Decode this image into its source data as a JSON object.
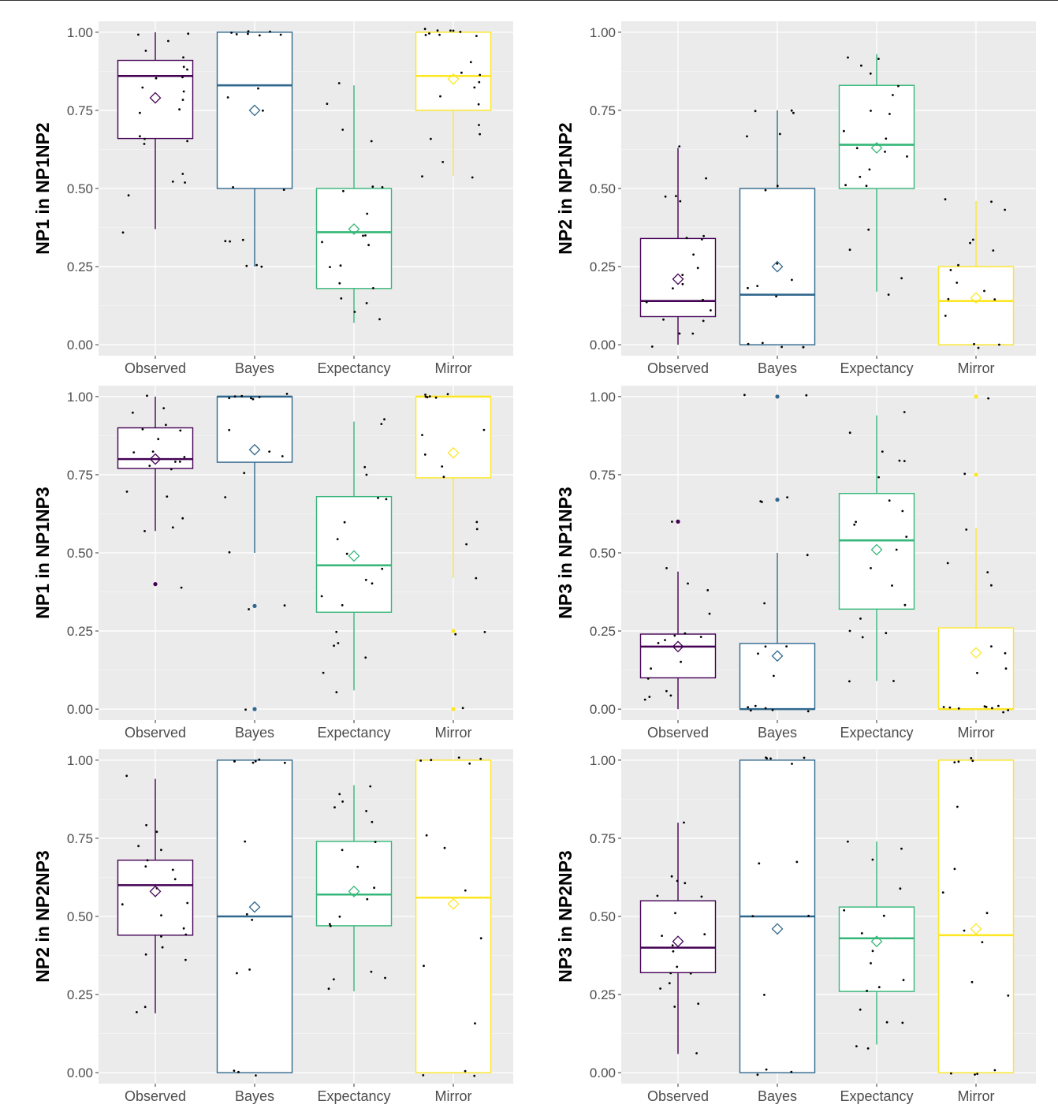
{
  "chart_data": [
    {
      "type": "box",
      "ylabel": "NP1 in NP1NP2",
      "categories": [
        "Observed",
        "Bayes",
        "Expectancy",
        "Mirror"
      ],
      "yticks": [
        "0.00",
        "0.25",
        "0.50",
        "0.75",
        "1.00"
      ],
      "ylim": [
        -0.035,
        1.035
      ],
      "boxes": [
        {
          "category": "Observed",
          "lower_whisker": 0.37,
          "q1": 0.66,
          "median": 0.86,
          "q3": 0.91,
          "upper_whisker": 1.0,
          "mean": 0.79,
          "outliers": []
        },
        {
          "category": "Bayes",
          "lower_whisker": 0.25,
          "q1": 0.5,
          "median": 0.83,
          "q3": 1.0,
          "upper_whisker": 1.0,
          "mean": 0.75,
          "outliers": []
        },
        {
          "category": "Expectancy",
          "lower_whisker": 0.07,
          "q1": 0.18,
          "median": 0.36,
          "q3": 0.5,
          "upper_whisker": 0.83,
          "mean": 0.37,
          "outliers": []
        },
        {
          "category": "Mirror",
          "lower_whisker": 0.54,
          "q1": 0.75,
          "median": 0.86,
          "q3": 1.0,
          "upper_whisker": 1.0,
          "mean": 0.85,
          "outliers": []
        }
      ],
      "jitter": [
        [
          0.47,
          0.53,
          0.37,
          0.52,
          0.54,
          0.65,
          0.66,
          0.66,
          0.67,
          0.75,
          0.76,
          0.79,
          0.8,
          0.82,
          0.86,
          0.86,
          0.87,
          0.9,
          0.91,
          0.95,
          0.97,
          1.0,
          1.0
        ],
        [
          0.25,
          0.25,
          0.25,
          0.33,
          0.33,
          0.33,
          0.5,
          0.5,
          0.75,
          0.8,
          0.83,
          1.0,
          1.0,
          1.0,
          1.0,
          1.0,
          1.0,
          1.0
        ],
        [
          0.07,
          0.1,
          0.14,
          0.15,
          0.18,
          0.2,
          0.25,
          0.25,
          0.33,
          0.33,
          0.35,
          0.36,
          0.43,
          0.5,
          0.5,
          0.5,
          0.64,
          0.69,
          0.78,
          0.83
        ],
        [
          0.54,
          0.53,
          0.58,
          0.67,
          0.67,
          0.71,
          0.77,
          0.8,
          0.82,
          0.84,
          0.86,
          0.87,
          0.9,
          1.0,
          1.0,
          1.0,
          1.0,
          1.0,
          1.0,
          1.0,
          1.0,
          1.0
        ]
      ]
    },
    {
      "type": "box",
      "ylabel": "NP2 in NP1NP2",
      "categories": [
        "Observed",
        "Bayes",
        "Expectancy",
        "Mirror"
      ],
      "yticks": [
        "0.00",
        "0.25",
        "0.50",
        "0.75",
        "1.00"
      ],
      "ylim": [
        -0.035,
        1.035
      ],
      "boxes": [
        {
          "category": "Observed",
          "lower_whisker": 0.0,
          "q1": 0.09,
          "median": 0.14,
          "q3": 0.34,
          "upper_whisker": 0.63,
          "mean": 0.21,
          "outliers": []
        },
        {
          "category": "Bayes",
          "lower_whisker": 0.0,
          "q1": 0.0,
          "median": 0.16,
          "q3": 0.5,
          "upper_whisker": 0.75,
          "mean": 0.25,
          "outliers": []
        },
        {
          "category": "Expectancy",
          "lower_whisker": 0.17,
          "q1": 0.5,
          "median": 0.64,
          "q3": 0.83,
          "upper_whisker": 0.93,
          "mean": 0.63,
          "outliers": []
        },
        {
          "category": "Mirror",
          "lower_whisker": 0.0,
          "q1": 0.0,
          "median": 0.14,
          "q3": 0.25,
          "upper_whisker": 0.46,
          "mean": 0.15,
          "outliers": []
        }
      ],
      "jitter": [
        [
          0.0,
          0.04,
          0.04,
          0.08,
          0.09,
          0.1,
          0.13,
          0.14,
          0.18,
          0.2,
          0.22,
          0.25,
          0.3,
          0.33,
          0.35,
          0.35,
          0.45,
          0.47,
          0.48,
          0.53,
          0.63
        ],
        [
          0.0,
          0.0,
          0.0,
          0.0,
          0.0,
          0.15,
          0.17,
          0.2,
          0.2,
          0.25,
          0.5,
          0.5,
          0.67,
          0.67,
          0.75,
          0.75,
          0.75
        ],
        [
          0.17,
          0.22,
          0.31,
          0.36,
          0.5,
          0.5,
          0.53,
          0.56,
          0.6,
          0.62,
          0.64,
          0.67,
          0.69,
          0.75,
          0.75,
          0.8,
          0.83,
          0.86,
          0.9,
          0.91,
          0.93
        ],
        [
          0.0,
          0.0,
          0.0,
          0.1,
          0.14,
          0.14,
          0.17,
          0.2,
          0.25,
          0.25,
          0.29,
          0.33,
          0.33,
          0.42,
          0.46,
          0.46
        ]
      ]
    },
    {
      "type": "box",
      "ylabel": "NP1 in NP1NP3",
      "categories": [
        "Observed",
        "Bayes",
        "Expectancy",
        "Mirror"
      ],
      "yticks": [
        "0.00",
        "0.25",
        "0.50",
        "0.75",
        "1.00"
      ],
      "ylim": [
        -0.035,
        1.035
      ],
      "boxes": [
        {
          "category": "Observed",
          "lower_whisker": 0.57,
          "q1": 0.77,
          "median": 0.8,
          "q3": 0.9,
          "upper_whisker": 1.0,
          "mean": 0.8,
          "outliers": [
            0.4
          ]
        },
        {
          "category": "Bayes",
          "lower_whisker": 0.5,
          "q1": 0.79,
          "median": 1.0,
          "q3": 1.0,
          "upper_whisker": 1.0,
          "mean": 0.83,
          "outliers": [
            0.33,
            0.0
          ]
        },
        {
          "category": "Expectancy",
          "lower_whisker": 0.06,
          "q1": 0.31,
          "median": 0.46,
          "q3": 0.68,
          "upper_whisker": 0.92,
          "mean": 0.49,
          "outliers": []
        },
        {
          "category": "Mirror",
          "lower_whisker": 0.42,
          "q1": 0.74,
          "median": 1.0,
          "q3": 1.0,
          "upper_whisker": 1.0,
          "mean": 0.82,
          "outliers": [
            0.25,
            0.0
          ]
        }
      ],
      "jitter": [
        [
          0.4,
          0.57,
          0.59,
          0.62,
          0.67,
          0.7,
          0.76,
          0.78,
          0.79,
          0.8,
          0.8,
          0.82,
          0.83,
          0.86,
          0.88,
          0.9,
          0.92,
          0.95,
          0.96,
          1.0
        ],
        [
          0.0,
          0.33,
          0.33,
          0.5,
          0.67,
          0.75,
          0.8,
          0.83,
          0.89,
          1.0,
          1.0,
          1.0,
          1.0,
          1.0,
          1.0,
          1.0
        ],
        [
          0.06,
          0.11,
          0.17,
          0.2,
          0.2,
          0.25,
          0.33,
          0.36,
          0.41,
          0.42,
          0.46,
          0.5,
          0.55,
          0.6,
          0.67,
          0.67,
          0.75,
          0.78,
          0.91,
          0.92
        ],
        [
          0.0,
          0.25,
          0.25,
          0.42,
          0.53,
          0.57,
          0.6,
          0.75,
          0.78,
          0.82,
          0.88,
          0.89,
          1.0,
          1.0,
          1.0,
          1.0,
          1.0,
          1.0
        ]
      ]
    },
    {
      "type": "box",
      "ylabel": "NP3 in NP1NP3",
      "categories": [
        "Observed",
        "Bayes",
        "Expectancy",
        "Mirror"
      ],
      "yticks": [
        "0.00",
        "0.25",
        "0.50",
        "0.75",
        "1.00"
      ],
      "ylim": [
        -0.035,
        1.035
      ],
      "boxes": [
        {
          "category": "Observed",
          "lower_whisker": 0.0,
          "q1": 0.1,
          "median": 0.2,
          "q3": 0.24,
          "upper_whisker": 0.44,
          "mean": 0.2,
          "outliers": [
            0.6
          ]
        },
        {
          "category": "Bayes",
          "lower_whisker": 0.0,
          "q1": 0.0,
          "median": 0.0,
          "q3": 0.21,
          "upper_whisker": 0.5,
          "mean": 0.17,
          "outliers": [
            0.67,
            1.0
          ]
        },
        {
          "category": "Expectancy",
          "lower_whisker": 0.09,
          "q1": 0.32,
          "median": 0.54,
          "q3": 0.69,
          "upper_whisker": 0.94,
          "mean": 0.51,
          "outliers": []
        },
        {
          "category": "Mirror",
          "lower_whisker": 0.0,
          "q1": 0.0,
          "median": 0.0,
          "q3": 0.26,
          "upper_whisker": 0.58,
          "mean": 0.18,
          "outliers": [
            0.75,
            1.0
          ]
        }
      ],
      "jitter": [
        [
          0.04,
          0.04,
          0.05,
          0.06,
          0.1,
          0.12,
          0.16,
          0.2,
          0.21,
          0.22,
          0.23,
          0.25,
          0.3,
          0.38,
          0.41,
          0.44,
          0.6
        ],
        [
          0.0,
          0.0,
          0.0,
          0.0,
          0.0,
          0.0,
          0.11,
          0.17,
          0.2,
          0.2,
          0.33,
          0.5,
          0.67,
          0.67,
          0.67,
          1.0,
          1.0
        ],
        [
          0.08,
          0.09,
          0.22,
          0.25,
          0.25,
          0.28,
          0.33,
          0.4,
          0.45,
          0.5,
          0.55,
          0.58,
          0.59,
          0.64,
          0.67,
          0.75,
          0.8,
          0.8,
          0.82,
          0.89,
          0.94
        ],
        [
          0.0,
          0.0,
          0.0,
          0.0,
          0.0,
          0.0,
          0.0,
          0.0,
          0.0,
          0.11,
          0.12,
          0.17,
          0.21,
          0.4,
          0.44,
          0.46,
          0.58,
          0.75,
          1.0
        ]
      ]
    },
    {
      "type": "box",
      "ylabel": "NP2 in NP2NP3",
      "categories": [
        "Observed",
        "Bayes",
        "Expectancy",
        "Mirror"
      ],
      "yticks": [
        "0.00",
        "0.25",
        "0.50",
        "0.75",
        "1.00"
      ],
      "ylim": [
        -0.035,
        1.035
      ],
      "boxes": [
        {
          "category": "Observed",
          "lower_whisker": 0.19,
          "q1": 0.44,
          "median": 0.6,
          "q3": 0.68,
          "upper_whisker": 0.94,
          "mean": 0.58,
          "outliers": []
        },
        {
          "category": "Bayes",
          "lower_whisker": 0.0,
          "q1": 0.0,
          "median": 0.5,
          "q3": 1.0,
          "upper_whisker": 1.0,
          "mean": 0.53,
          "outliers": []
        },
        {
          "category": "Expectancy",
          "lower_whisker": 0.26,
          "q1": 0.47,
          "median": 0.57,
          "q3": 0.74,
          "upper_whisker": 0.92,
          "mean": 0.58,
          "outliers": []
        },
        {
          "category": "Mirror",
          "lower_whisker": 0.0,
          "q1": 0.0,
          "median": 0.56,
          "q3": 1.0,
          "upper_whisker": 1.0,
          "mean": 0.54,
          "outliers": []
        }
      ],
      "jitter": [
        [
          0.19,
          0.2,
          0.36,
          0.39,
          0.39,
          0.43,
          0.44,
          0.47,
          0.5,
          0.54,
          0.55,
          0.59,
          0.62,
          0.64,
          0.65,
          0.68,
          0.72,
          0.73,
          0.78,
          0.79,
          0.94
        ],
        [
          0.0,
          0.0,
          0.0,
          0.33,
          0.33,
          0.5,
          0.5,
          0.75,
          1.0,
          1.0,
          1.0,
          1.0,
          1.0,
          1.0
        ],
        [
          0.26,
          0.29,
          0.31,
          0.33,
          0.47,
          0.47,
          0.5,
          0.55,
          0.6,
          0.67,
          0.72,
          0.75,
          0.8,
          0.83,
          0.84,
          0.86,
          0.9,
          0.92
        ],
        [
          0.0,
          0.0,
          0.0,
          0.16,
          0.35,
          0.43,
          0.59,
          0.71,
          0.75,
          1.0,
          1.0,
          1.0,
          1.0,
          1.0
        ]
      ]
    },
    {
      "type": "box",
      "ylabel": "NP3 in NP2NP3",
      "categories": [
        "Observed",
        "Bayes",
        "Expectancy",
        "Mirror"
      ],
      "yticks": [
        "0.00",
        "0.25",
        "0.50",
        "0.75",
        "1.00"
      ],
      "ylim": [
        -0.035,
        1.035
      ],
      "boxes": [
        {
          "category": "Observed",
          "lower_whisker": 0.06,
          "q1": 0.32,
          "median": 0.4,
          "q3": 0.55,
          "upper_whisker": 0.8,
          "mean": 0.42,
          "outliers": []
        },
        {
          "category": "Bayes",
          "lower_whisker": 0.0,
          "q1": 0.0,
          "median": 0.5,
          "q3": 1.0,
          "upper_whisker": 1.0,
          "mean": 0.46,
          "outliers": []
        },
        {
          "category": "Expectancy",
          "lower_whisker": 0.09,
          "q1": 0.26,
          "median": 0.43,
          "q3": 0.53,
          "upper_whisker": 0.74,
          "mean": 0.42,
          "outliers": []
        },
        {
          "category": "Mirror",
          "lower_whisker": 0.0,
          "q1": 0.0,
          "median": 0.44,
          "q3": 1.0,
          "upper_whisker": 1.0,
          "mean": 0.46,
          "outliers": []
        }
      ],
      "jitter": [
        [
          0.06,
          0.21,
          0.22,
          0.27,
          0.28,
          0.31,
          0.33,
          0.35,
          0.38,
          0.4,
          0.43,
          0.45,
          0.5,
          0.56,
          0.57,
          0.6,
          0.61,
          0.64,
          0.8
        ],
        [
          0.0,
          0.0,
          0.0,
          0.25,
          0.5,
          0.5,
          0.67,
          0.67,
          1.0,
          1.0,
          1.0,
          1.0,
          1.0
        ],
        [
          0.08,
          0.09,
          0.15,
          0.17,
          0.2,
          0.25,
          0.28,
          0.3,
          0.36,
          0.4,
          0.44,
          0.5,
          0.52,
          0.6,
          0.69,
          0.72,
          0.74
        ],
        [
          0.0,
          0.0,
          0.0,
          0.0,
          0.25,
          0.29,
          0.42,
          0.46,
          0.5,
          0.57,
          0.65,
          0.84,
          1.0,
          1.0,
          1.0,
          1.0
        ]
      ]
    }
  ],
  "colors": {
    "Observed": "#440154",
    "Bayes": "#31688e",
    "Expectancy": "#35b779",
    "Mirror": "#fde725",
    "panel_background": "#ebebeb",
    "grid_major": "#ffffff",
    "points": "#000000"
  },
  "mean_marker": "diamond"
}
